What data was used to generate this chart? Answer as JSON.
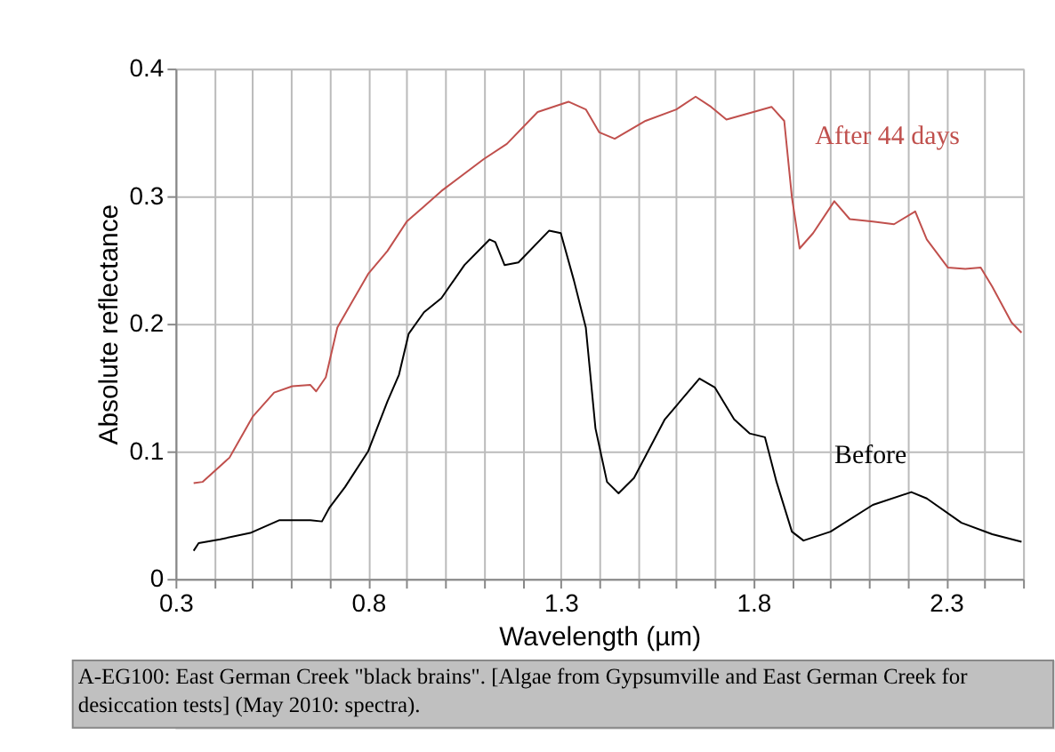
{
  "chart_data": {
    "type": "line",
    "xlabel": "Wavelength (µm)",
    "ylabel": "Absolute reflectance",
    "xlim": [
      0.3,
      2.5
    ],
    "ylim": [
      0,
      0.4
    ],
    "xticks": [
      0.3,
      {
        "value": 0.4,
        "label": null
      },
      {
        "value": 0.5,
        "label": null
      },
      {
        "value": 0.6,
        "label": null
      },
      {
        "value": 0.7,
        "label": null
      },
      0.8,
      {
        "value": 0.9,
        "label": null
      },
      {
        "value": 1.0,
        "label": null
      },
      {
        "value": 1.1,
        "label": null
      },
      {
        "value": 1.2,
        "label": null
      },
      1.3,
      {
        "value": 1.4,
        "label": null
      },
      {
        "value": 1.5,
        "label": null
      },
      {
        "value": 1.6,
        "label": null
      },
      {
        "value": 1.7,
        "label": null
      },
      1.8,
      {
        "value": 1.9,
        "label": null
      },
      {
        "value": 2.0,
        "label": null
      },
      {
        "value": 2.1,
        "label": null
      },
      {
        "value": 2.2,
        "label": null
      },
      2.3,
      {
        "value": 2.4,
        "label": null
      },
      {
        "value": 2.5,
        "label": null
      }
    ],
    "yticks": [
      0,
      0.1,
      0.2,
      0.3,
      0.4
    ],
    "grid": true,
    "marker": "none",
    "line_style": "solid",
    "series": [
      {
        "name": "After 44 days",
        "color": "#c0504d",
        "x": [
          0.347,
          0.37,
          0.44,
          0.5,
          0.556,
          0.603,
          0.65,
          0.665,
          0.69,
          0.72,
          0.76,
          0.8,
          0.85,
          0.9,
          0.945,
          0.99,
          1.1,
          1.16,
          1.24,
          1.32,
          1.365,
          1.4,
          1.44,
          1.52,
          1.6,
          1.65,
          1.69,
          1.73,
          1.8,
          1.847,
          1.88,
          1.9,
          1.92,
          1.955,
          2.01,
          2.05,
          2.11,
          2.165,
          2.22,
          2.25,
          2.305,
          2.35,
          2.39,
          2.42,
          2.47,
          2.496
        ],
        "values": [
          0.075,
          0.076,
          0.095,
          0.127,
          0.146,
          0.151,
          0.152,
          0.147,
          0.158,
          0.197,
          0.218,
          0.239,
          0.257,
          0.28,
          0.292,
          0.304,
          0.329,
          0.341,
          0.366,
          0.374,
          0.368,
          0.35,
          0.345,
          0.359,
          0.368,
          0.378,
          0.37,
          0.36,
          0.366,
          0.37,
          0.359,
          0.299,
          0.259,
          0.271,
          0.296,
          0.282,
          0.28,
          0.278,
          0.288,
          0.266,
          0.244,
          0.243,
          0.244,
          0.229,
          0.201,
          0.193
        ]
      },
      {
        "name": "Before",
        "color": "#000000",
        "x": [
          0.347,
          0.36,
          0.416,
          0.494,
          0.57,
          0.65,
          0.68,
          0.7,
          0.74,
          0.8,
          0.85,
          0.88,
          0.905,
          0.945,
          0.99,
          1.05,
          1.115,
          1.13,
          1.154,
          1.19,
          1.27,
          1.3,
          1.334,
          1.365,
          1.39,
          1.42,
          1.45,
          1.49,
          1.57,
          1.66,
          1.7,
          1.75,
          1.79,
          1.83,
          1.86,
          1.9,
          1.93,
          2.0,
          2.11,
          2.21,
          2.25,
          2.34,
          2.42,
          2.496
        ],
        "values": [
          0.022,
          0.028,
          0.031,
          0.036,
          0.046,
          0.046,
          0.045,
          0.056,
          0.072,
          0.1,
          0.139,
          0.16,
          0.192,
          0.209,
          0.22,
          0.246,
          0.266,
          0.264,
          0.246,
          0.248,
          0.273,
          0.271,
          0.234,
          0.197,
          0.118,
          0.076,
          0.067,
          0.079,
          0.125,
          0.157,
          0.15,
          0.125,
          0.114,
          0.111,
          0.076,
          0.037,
          0.03,
          0.037,
          0.058,
          0.068,
          0.063,
          0.044,
          0.035,
          0.029
        ]
      }
    ],
    "annotations": [
      "A-EG100: East German Creek \"black brains\". [Algae from Gypsumville and East German Creek for desiccation tests] (May 2010: spectra)."
    ]
  }
}
